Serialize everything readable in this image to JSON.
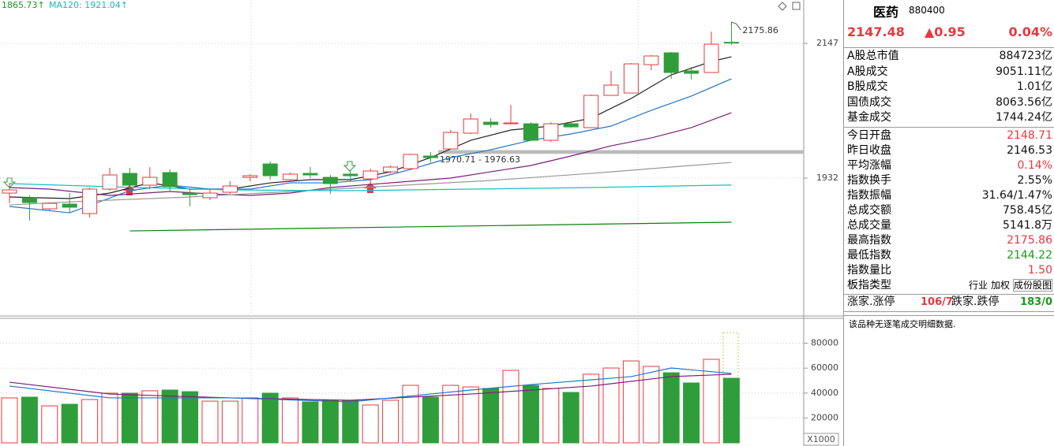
{
  "chart_data": [
    {
      "type": "candlestick",
      "legend": [
        {
          "label": "1865.73↑",
          "color": "#1a9a1a"
        },
        {
          "label": "MA120: 1921.04↑",
          "color": "#18b8b8"
        }
      ],
      "ylim": [
        1713.2,
        2216.2
      ],
      "yticks": [
        1932,
        2147
      ],
      "up_color": "#e8383d",
      "down_color": "#2f9e3a",
      "open": [
        1908.1,
        1900.6,
        1882.9,
        1890.5,
        1875.4,
        1914.4,
        1939.5,
        1920.7,
        1940.8,
        1908.1,
        1900.6,
        1909.4,
        1933.2,
        1954.6,
        1929.5,
        1939.5,
        1933.2,
        1938.3,
        1930.7,
        1942.0,
        1947.1,
        1967.2,
        1978.5,
        2003.7,
        2021.3,
        2018.7,
        2018.7,
        1992.3,
        2018.7,
        2012.5,
        2064.0,
        2067.8,
        2113.0,
        2131.9,
        2103.0,
        2100.5,
        2148.71
      ],
      "high": [
        1924.4,
        1904.3,
        1893.0,
        1908.1,
        1916.9,
        1948.3,
        1948.3,
        1949.6,
        1945.8,
        1914.4,
        1913.1,
        1927.0,
        1938.3,
        1958.4,
        1940.8,
        1949.6,
        1937.0,
        1944.6,
        1947.1,
        1952.1,
        1971.0,
        1973.5,
        2008.7,
        2035.1,
        2027.5,
        2048.9,
        2021.3,
        2021.3,
        2021.3,
        2065.3,
        2103.0,
        2115.6,
        2128.1,
        2133.2,
        2109.3,
        2165.9,
        2175.86
      ],
      "low": [
        1891.7,
        1864.1,
        1880.0,
        1876.6,
        1869.1,
        1911.9,
        1911.9,
        1914.4,
        1911.9,
        1886.7,
        1896.8,
        1906.8,
        1927.0,
        1929.5,
        1927.0,
        1932.0,
        1906.8,
        1927.0,
        1924.4,
        1939.5,
        1945.8,
        1957.1,
        1977.2,
        2002.4,
        2012.5,
        2018.7,
        1992.3,
        1989.8,
        2012.5,
        2012.5,
        2064.0,
        2067.8,
        2104.2,
        2090.4,
        2089.2,
        2100.5,
        2144.22
      ],
      "close": [
        1913.1,
        1893.0,
        1891.7,
        1885.5,
        1914.4,
        1937.0,
        1920.7,
        1933.2,
        1918.2,
        1905.6,
        1908.1,
        1919.4,
        1935.8,
        1935.8,
        1938.3,
        1937.0,
        1923.2,
        1935.8,
        1943.3,
        1949.6,
        1969.7,
        1964.7,
        2004.9,
        2026.3,
        2017.5,
        2020.0,
        1992.3,
        2018.7,
        2013.7,
        2064.0,
        2080.4,
        2114.3,
        2126.9,
        2100.5,
        2099.2,
        2145.7,
        2147.48
      ],
      "lines": [
        {
          "color": "#222222",
          "x": [
            0,
            3,
            5,
            7,
            9,
            11,
            13,
            15,
            17,
            19,
            21,
            23,
            25,
            27,
            29,
            31,
            33,
            35,
            36
          ],
          "values": [
            1901.8,
            1899.3,
            1908.1,
            1924.4,
            1914.4,
            1914.4,
            1924.4,
            1929.5,
            1929.5,
            1942.0,
            1964.7,
            1992.3,
            2008.7,
            2015.0,
            2027.5,
            2059.0,
            2096.7,
            2118.1,
            2125.6
          ]
        },
        {
          "color": "#1f77c8",
          "x": [
            0,
            3,
            6,
            8,
            10,
            12,
            14,
            16,
            18,
            20,
            22,
            24,
            26,
            28,
            30,
            32,
            34,
            36
          ],
          "values": [
            1886.7,
            1876.6,
            1911.9,
            1920.7,
            1914.4,
            1914.4,
            1924.4,
            1924.4,
            1929.5,
            1945.8,
            1964.7,
            1977.2,
            1992.3,
            2002.4,
            2015.0,
            2040.1,
            2062.8,
            2090.4
          ]
        },
        {
          "color": "#7a1f7a",
          "x": [
            0,
            2,
            5,
            8,
            10,
            12,
            14,
            16,
            18,
            20,
            22,
            24,
            26,
            28,
            30,
            32,
            34,
            36
          ],
          "values": [
            1916.9,
            1914.4,
            1904.3,
            1910.6,
            1906.8,
            1904.3,
            1908.1,
            1916.9,
            1921.9,
            1927.0,
            1932.0,
            1942.0,
            1952.1,
            1967.2,
            1983.5,
            1996.1,
            2012.5,
            2036.3
          ]
        },
        {
          "color": "#999999",
          "x": [
            0,
            4,
            9,
            14,
            19,
            24,
            29,
            33,
            36
          ],
          "values": [
            1889.2,
            1895.5,
            1901.8,
            1910.6,
            1919.4,
            1928.2,
            1939.5,
            1949.6,
            1957.1
          ]
        },
        {
          "color": "#18c0c0",
          "x": [
            0,
            5,
            11,
            17,
            23,
            29,
            36
          ],
          "values": [
            1923.2,
            1918.2,
            1913.1,
            1911.9,
            1914.4,
            1916.9,
            1921.04
          ]
        },
        {
          "color": "#0d7d0d",
          "x": [
            6,
            36
          ],
          "values": [
            1847.7,
            1861.6
          ]
        }
      ],
      "annotations": [
        {
          "text": "2175.86"
        },
        {
          "text": "1970.71 - 1976.63",
          "range": [
            1970.71,
            1976.63
          ]
        }
      ]
    },
    {
      "type": "bar",
      "ylim": [
        0,
        100000
      ],
      "yticks": [
        20000,
        40000,
        60000,
        80000
      ],
      "unit_label": "X1000",
      "values": [
        36100,
        36700,
        29700,
        31000,
        34800,
        39900,
        39900,
        41800,
        42400,
        41100,
        33500,
        33500,
        36100,
        39900,
        36100,
        32900,
        34200,
        34200,
        30400,
        34200,
        46200,
        36700,
        46200,
        44900,
        43700,
        58200,
        46200,
        43700,
        40500,
        55100,
        60100,
        65800,
        61400,
        56300,
        48100,
        67100,
        51900
      ],
      "lines": [
        {
          "color": "#7a1f7a",
          "x": [
            0,
            5,
            11,
            17,
            23,
            29,
            33,
            36
          ],
          "values": [
            48700,
            39200,
            36100,
            34200,
            39200,
            45600,
            53200,
            55100
          ]
        },
        {
          "color": "#1f77c8",
          "x": [
            0,
            5,
            11,
            17,
            23,
            26,
            31,
            33,
            36
          ],
          "values": [
            45600,
            36100,
            36100,
            32900,
            42400,
            46800,
            53200,
            60100,
            55700
          ]
        }
      ]
    }
  ],
  "panel": {
    "name": "医药",
    "code": "880400",
    "quote": [
      {
        "text": "2147.48",
        "color": "#e8383d"
      },
      {
        "text": "▲0.95",
        "color": "#e8383d"
      },
      {
        "text": "0.04%",
        "color": "#e8383d"
      }
    ],
    "market_rows": [
      {
        "label": "A股总市值",
        "value": "884723亿",
        "color": "#111111"
      },
      {
        "label": "A股成交",
        "value": "9051.11亿",
        "color": "#111111"
      },
      {
        "label": "B股成交",
        "value": "1.01亿",
        "color": "#111111"
      },
      {
        "label": "国债成交",
        "value": "8063.56亿",
        "color": "#111111"
      },
      {
        "label": "基金成交",
        "value": "1744.24亿",
        "color": "#111111"
      }
    ],
    "index_rows": [
      {
        "label": "今日开盘",
        "value": "2148.71",
        "color": "#e8383d"
      },
      {
        "label": "昨日收盘",
        "value": "2146.53",
        "color": "#111111"
      },
      {
        "label": "平均涨幅",
        "value": "0.14%",
        "color": "#e8383d"
      },
      {
        "label": "指数换手",
        "value": "2.55%",
        "color": "#111111"
      },
      {
        "label": "指数振幅",
        "value": "31.64/1.47%",
        "color": "#111111"
      },
      {
        "label": "总成交额",
        "value": "758.45亿",
        "color": "#111111"
      },
      {
        "label": "总成交量",
        "value": "5141.8万",
        "color": "#111111"
      },
      {
        "label": "最高指数",
        "value": "2175.86",
        "color": "#e8383d"
      },
      {
        "label": "最低指数",
        "value": "2144.22",
        "color": "#1a9a1a"
      },
      {
        "label": "指数量比",
        "value": "1.50",
        "color": "#e8383d"
      }
    ],
    "board_type": {
      "label": "板指类型",
      "options": [
        "行业",
        "加权",
        "成份股图"
      ]
    },
    "breadth": [
      {
        "text": "涨家.涨停",
        "color": "#111111"
      },
      {
        "text": "106/7",
        "color": "#e8383d"
      },
      {
        "text": "跌家.跌停",
        "color": "#111111"
      },
      {
        "text": "183/0",
        "color": "#1a9a1a"
      }
    ],
    "note": "该品种无逐笔成交明细数据."
  }
}
